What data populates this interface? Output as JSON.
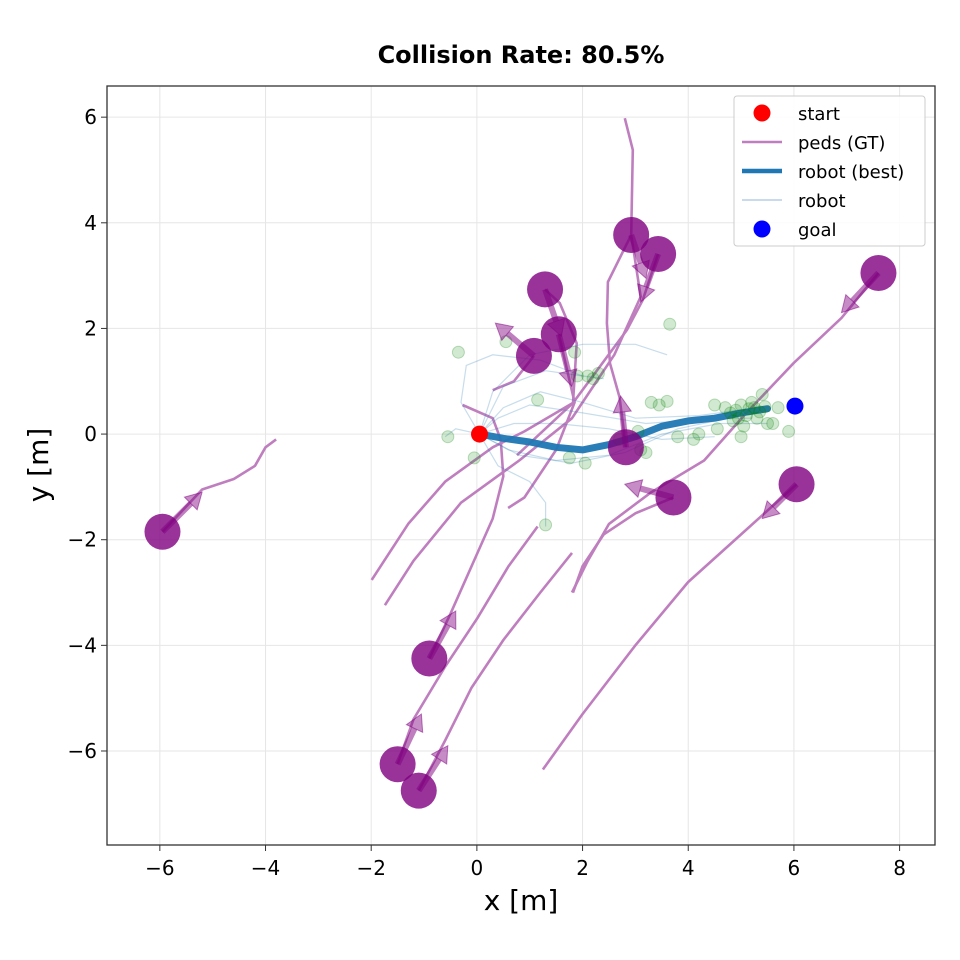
{
  "chart_data": {
    "type": "scatter",
    "title": "Collision Rate: 80.5%",
    "xlabel": "x [m]",
    "ylabel": "y [m]",
    "xlim": [
      -7.0,
      8.67
    ],
    "ylim": [
      -7.78,
      6.59
    ],
    "xticks": [
      -6,
      -4,
      -2,
      0,
      2,
      4,
      6,
      8
    ],
    "yticks": [
      -6,
      -4,
      -2,
      0,
      2,
      4,
      6
    ],
    "xtick_labels": [
      "−6",
      "−4",
      "−2",
      "0",
      "2",
      "4",
      "6",
      "8"
    ],
    "ytick_labels": [
      "−6",
      "−4",
      "−2",
      "0",
      "2",
      "4",
      "6"
    ],
    "grid": true,
    "legend_placement": "top-right",
    "legend": [
      {
        "label": "start",
        "kind": "marker",
        "color": "#ff0000"
      },
      {
        "label": "peds (GT)",
        "kind": "line",
        "color": "#bf7fbf"
      },
      {
        "label": "robot (best)",
        "kind": "thick-line",
        "color": "#1f77b4"
      },
      {
        "label": "robot",
        "kind": "thin-line",
        "color": "#a6c4df"
      },
      {
        "label": "goal",
        "kind": "marker",
        "color": "#0000ff"
      }
    ],
    "colors": {
      "ped": "#800080",
      "ped_trail": "#bf7fbf",
      "robot": "#1f77b4",
      "samples_end": "#008000",
      "start": "#ff0000",
      "goal": "#0000ff"
    },
    "start": [
      0.05,
      0.0
    ],
    "goal": [
      6.02,
      0.53
    ],
    "peds": [
      {
        "pos": [
          -5.95,
          -1.85
        ],
        "arrow_to": [
          -5.2,
          -1.1
        ],
        "trail": [
          [
            -5.95,
            -1.85
          ],
          [
            -5.2,
            -1.05
          ],
          [
            -4.6,
            -0.85
          ],
          [
            -4.2,
            -0.6
          ],
          [
            -4.0,
            -0.25
          ],
          [
            -3.8,
            -0.1
          ]
        ]
      },
      {
        "pos": [
          -0.9,
          -4.25
        ],
        "arrow_to": [
          -0.4,
          -3.35
        ],
        "trail": [
          [
            -0.9,
            -4.25
          ],
          [
            -0.5,
            -3.4
          ],
          [
            -0.1,
            -2.5
          ],
          [
            0.3,
            -1.6
          ],
          [
            0.5,
            -0.8
          ],
          [
            0.45,
            -0.1
          ],
          [
            0.3,
            0.3
          ],
          [
            -0.27,
            0.55
          ]
        ]
      },
      {
        "pos": [
          -1.5,
          -6.25
        ],
        "arrow_to": [
          -1.05,
          -5.3
        ],
        "trail": [
          [
            -1.5,
            -6.25
          ],
          [
            -1.2,
            -5.4
          ],
          [
            -0.6,
            -4.4
          ],
          [
            0.0,
            -3.5
          ],
          [
            0.6,
            -2.5
          ],
          [
            1.15,
            -1.75
          ]
        ]
      },
      {
        "pos": [
          -1.1,
          -6.75
        ],
        "arrow_to": [
          -0.55,
          -5.9
        ],
        "trail": [
          [
            -1.1,
            -6.75
          ],
          [
            -0.6,
            -5.8
          ],
          [
            -0.1,
            -4.8
          ],
          [
            0.5,
            -3.9
          ],
          [
            1.2,
            -3.0
          ],
          [
            1.8,
            -2.25
          ]
        ]
      },
      {
        "pos": [
          1.08,
          1.48
        ],
        "arrow_to": [
          0.35,
          2.1
        ],
        "trail": [
          [
            1.08,
            1.48
          ],
          [
            0.7,
            1.0
          ],
          [
            0.3,
            0.83
          ]
        ]
      },
      {
        "pos": [
          1.29,
          2.74
        ],
        "arrow_to": [
          1.6,
          1.85
        ],
        "trail": [
          [
            1.29,
            2.74
          ],
          [
            1.57,
            2.48
          ],
          [
            1.89,
            1.72
          ],
          [
            1.82,
            0.59
          ],
          [
            0.9,
            0.05
          ],
          [
            0.3,
            -0.25
          ],
          [
            -0.6,
            -0.9
          ],
          [
            -1.3,
            -1.7
          ],
          [
            -1.99,
            -2.76
          ]
        ]
      },
      {
        "pos": [
          1.55,
          1.89
        ],
        "arrow_to": [
          1.8,
          0.9
        ],
        "trail": [
          [
            1.55,
            1.89
          ],
          [
            1.85,
            0.6
          ],
          [
            1.5,
            -0.3
          ],
          [
            0.9,
            -1.2
          ],
          [
            0.59,
            -1.4
          ]
        ]
      },
      {
        "pos": [
          2.92,
          3.77
        ],
        "arrow_to": [
          3.2,
          2.95
        ],
        "trail": [
          [
            2.92,
            3.77
          ],
          [
            3.1,
            2.6
          ],
          [
            2.6,
            1.5
          ],
          [
            1.8,
            0.3
          ],
          [
            0.8,
            -0.5
          ],
          [
            -0.3,
            -1.3
          ],
          [
            -1.2,
            -2.4
          ],
          [
            -1.74,
            -3.24
          ]
        ]
      },
      {
        "pos": [
          3.43,
          3.41
        ],
        "arrow_to": [
          3.1,
          2.5
        ],
        "trail": [
          [
            3.43,
            3.41
          ],
          [
            3.14,
            2.54
          ],
          [
            2.84,
            1.97
          ],
          [
            1.82,
            0.59
          ],
          [
            0.76,
            -0.4
          ]
        ]
      },
      {
        "pos": [
          7.6,
          3.05
        ],
        "arrow_to": [
          6.9,
          2.3
        ],
        "trail": [
          [
            7.6,
            3.05
          ],
          [
            6.9,
            2.2
          ],
          [
            6.0,
            1.35
          ],
          [
            5.1,
            0.4
          ],
          [
            4.3,
            -0.5
          ],
          [
            3.3,
            -1.1
          ],
          [
            2.5,
            -1.7
          ],
          [
            2.1,
            -2.4
          ],
          [
            1.8,
            -3.0
          ]
        ]
      },
      {
        "pos": [
          2.82,
          -0.25
        ],
        "arrow_to": [
          2.72,
          0.72
        ],
        "trail": [
          [
            2.82,
            -0.25
          ],
          [
            2.7,
            0.7
          ],
          [
            2.52,
            1.34
          ],
          [
            2.46,
            2.1
          ],
          [
            2.48,
            2.88
          ],
          [
            2.92,
            3.77
          ],
          [
            2.95,
            5.38
          ],
          [
            2.8,
            5.98
          ]
        ]
      },
      {
        "pos": [
          3.72,
          -1.2
        ],
        "arrow_to": [
          2.8,
          -0.95
        ],
        "trail": [
          [
            3.72,
            -1.2
          ],
          [
            3.0,
            -1.5
          ],
          [
            2.4,
            -1.9
          ],
          [
            2.0,
            -2.5
          ],
          [
            1.82,
            -3.0
          ]
        ]
      },
      {
        "pos": [
          6.05,
          -0.95
        ],
        "arrow_to": [
          5.4,
          -1.6
        ],
        "trail": [
          [
            6.05,
            -0.95
          ],
          [
            5.0,
            -1.9
          ],
          [
            4.0,
            -2.8
          ],
          [
            3.0,
            -4.0
          ],
          [
            2.0,
            -5.3
          ],
          [
            1.25,
            -6.35
          ]
        ]
      }
    ],
    "robot_best": [
      [
        0.05,
        0.0
      ],
      [
        0.5,
        -0.08
      ],
      [
        1.0,
        -0.15
      ],
      [
        1.5,
        -0.25
      ],
      [
        2.0,
        -0.3
      ],
      [
        2.5,
        -0.2
      ],
      [
        3.0,
        -0.05
      ],
      [
        3.5,
        0.15
      ],
      [
        4.0,
        0.25
      ],
      [
        4.5,
        0.3
      ],
      [
        5.0,
        0.4
      ],
      [
        5.5,
        0.48
      ]
    ],
    "robot_samples": [
      [
        [
          0.05,
          0.0
        ],
        [
          0.5,
          0.5
        ],
        [
          1.2,
          0.8
        ],
        [
          2.0,
          0.6
        ],
        [
          3.0,
          0.3
        ],
        [
          4.2,
          0.35
        ],
        [
          5.3,
          0.5
        ]
      ],
      [
        [
          0.05,
          0.0
        ],
        [
          0.4,
          0.3
        ],
        [
          1.0,
          0.55
        ],
        [
          2.0,
          0.4
        ],
        [
          3.2,
          0.2
        ],
        [
          4.5,
          0.3
        ],
        [
          5.2,
          0.3
        ]
      ],
      [
        [
          0.05,
          0.0
        ],
        [
          0.6,
          -0.3
        ],
        [
          1.5,
          -0.5
        ],
        [
          2.5,
          -0.4
        ],
        [
          3.5,
          0.0
        ],
        [
          4.6,
          0.2
        ],
        [
          5.5,
          0.2
        ]
      ],
      [
        [
          0.05,
          0.0
        ],
        [
          -0.3,
          0.6
        ],
        [
          -0.2,
          1.3
        ],
        [
          0.3,
          1.5
        ],
        [
          1.2,
          1.4
        ],
        [
          2.0,
          1.1
        ],
        [
          2.4,
          1.05
        ]
      ],
      [
        [
          0.05,
          0.0
        ],
        [
          0.3,
          0.8
        ],
        [
          1.0,
          1.5
        ],
        [
          2.0,
          1.7
        ],
        [
          3.0,
          1.7
        ],
        [
          3.6,
          1.5
        ]
      ],
      [
        [
          0.05,
          0.0
        ],
        [
          0.4,
          -0.6
        ],
        [
          1.0,
          -0.9
        ],
        [
          1.3,
          -1.3
        ],
        [
          1.3,
          -1.75
        ]
      ],
      [
        [
          0.05,
          0.0
        ],
        [
          0.7,
          0.2
        ],
        [
          1.5,
          0.2
        ],
        [
          2.5,
          0.1
        ],
        [
          3.5,
          -0.1
        ],
        [
          4.5,
          -0.05
        ]
      ],
      [
        [
          0.05,
          0.0
        ],
        [
          -0.4,
          0.1
        ],
        [
          -0.6,
          -0.05
        ]
      ],
      [
        [
          0.05,
          0.0
        ],
        [
          0.8,
          -0.4
        ],
        [
          1.8,
          -0.55
        ],
        [
          2.8,
          -0.35
        ],
        [
          3.8,
          0.1
        ],
        [
          5.0,
          0.35
        ]
      ],
      [
        [
          0.05,
          0.0
        ],
        [
          0.5,
          0.9
        ],
        [
          1.3,
          1.2
        ],
        [
          2.0,
          1.1
        ]
      ]
    ],
    "sample_endpoints": [
      [
        -0.35,
        1.55
      ],
      [
        -0.55,
        -0.05
      ],
      [
        -0.05,
        -0.45
      ],
      [
        0.55,
        1.75
      ],
      [
        1.85,
        1.55
      ],
      [
        1.15,
        0.65
      ],
      [
        2.1,
        1.1
      ],
      [
        2.2,
        1.05
      ],
      [
        1.9,
        1.1
      ],
      [
        2.3,
        1.15
      ],
      [
        3.65,
        2.08
      ],
      [
        1.3,
        -1.72
      ],
      [
        1.75,
        -0.45
      ],
      [
        2.05,
        -0.55
      ],
      [
        3.3,
        0.6
      ],
      [
        3.45,
        0.55
      ],
      [
        3.6,
        0.62
      ],
      [
        3.2,
        -0.35
      ],
      [
        3.8,
        -0.05
      ],
      [
        4.1,
        -0.1
      ],
      [
        4.5,
        0.55
      ],
      [
        4.7,
        0.5
      ],
      [
        4.8,
        0.4
      ],
      [
        4.9,
        0.45
      ],
      [
        5.0,
        0.55
      ],
      [
        5.1,
        0.35
      ],
      [
        5.2,
        0.6
      ],
      [
        5.3,
        0.3
      ],
      [
        5.4,
        0.75
      ],
      [
        5.5,
        0.2
      ],
      [
        5.05,
        0.15
      ],
      [
        4.85,
        0.25
      ],
      [
        5.6,
        0.2
      ],
      [
        5.15,
        0.48
      ],
      [
        5.25,
        0.5
      ],
      [
        5.35,
        0.42
      ],
      [
        4.95,
        0.3
      ],
      [
        5.9,
        0.05
      ],
      [
        5.45,
        0.52
      ],
      [
        2.7,
        -0.1
      ],
      [
        3.05,
        0.05
      ],
      [
        3.1,
        -0.3
      ],
      [
        4.2,
        0.0
      ],
      [
        4.55,
        0.1
      ],
      [
        5.7,
        0.5
      ],
      [
        5.0,
        -0.05
      ]
    ]
  }
}
